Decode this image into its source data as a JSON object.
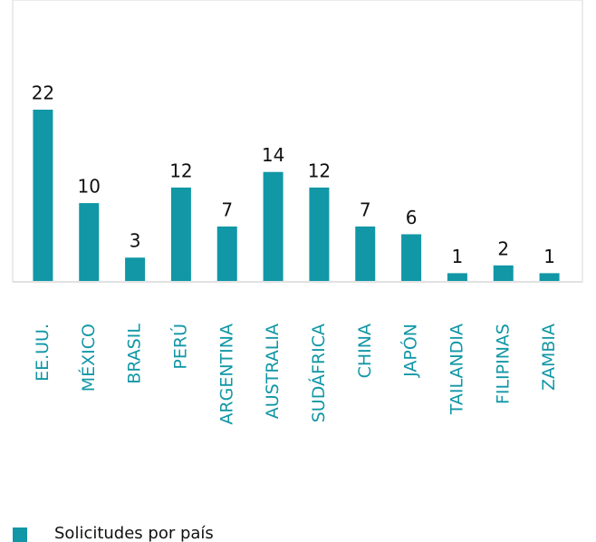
{
  "chart_data": {
    "type": "bar",
    "categories": [
      "EE.UU.",
      "MÉXICO",
      "BRASIL",
      "PERÚ",
      "ARGENTINA",
      "AUSTRALIA",
      "SUDÁFRICA",
      "CHINA",
      "JAPÓN",
      "TAILANDIA",
      "FILIPINAS",
      "ZAMBIA"
    ],
    "series": [
      {
        "name": "Solicitudes por país",
        "color": "#1197a6",
        "values": [
          22,
          10,
          3,
          12,
          7,
          14,
          12,
          7,
          6,
          1,
          2,
          1
        ]
      }
    ]
  }
}
